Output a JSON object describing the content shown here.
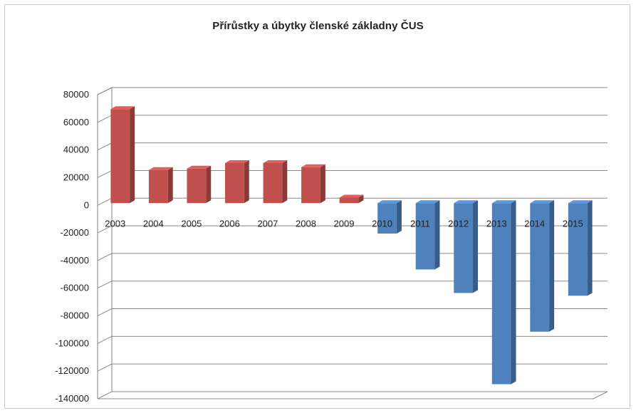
{
  "chart_data": {
    "type": "bar",
    "title": "Přírůstky a úbytky členské základny ČUS",
    "categories": [
      "2003",
      "2004",
      "2005",
      "2006",
      "2007",
      "2008",
      "2009",
      "2010",
      "2011",
      "2012",
      "2013",
      "2014",
      "2015"
    ],
    "values": [
      68000,
      24000,
      25000,
      29000,
      29000,
      26000,
      4000,
      -22000,
      -48000,
      -65000,
      -131000,
      -93000,
      -67000
    ],
    "ylim": [
      -140000,
      80000
    ],
    "yticks": [
      80000,
      60000,
      40000,
      20000,
      0,
      -20000,
      -40000,
      -60000,
      -80000,
      -100000,
      -120000,
      -140000
    ],
    "grid": true,
    "style": "3d-column",
    "colors": {
      "positive": "#c0504d",
      "negative": "#4f81bd"
    }
  }
}
